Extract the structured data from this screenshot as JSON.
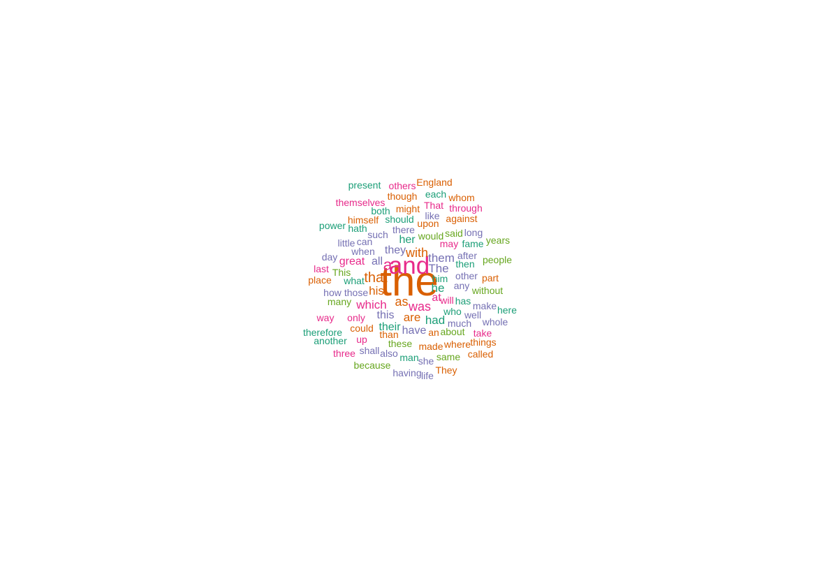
{
  "chart_data": {
    "type": "wordcloud",
    "palette": [
      "#1b9e77",
      "#d95f02",
      "#7570b3",
      "#e7298a",
      "#66a61e"
    ],
    "words": [
      {
        "text": "the",
        "weight": 100,
        "color": "#d95f02"
      },
      {
        "text": "and",
        "weight": 58,
        "color": "#e7298a"
      },
      {
        "text": "a",
        "weight": 38,
        "color": "#e7298a"
      },
      {
        "text": "that",
        "weight": 34,
        "color": "#d95f02"
      },
      {
        "text": "with",
        "weight": 30,
        "color": "#d95f02"
      },
      {
        "text": "was",
        "weight": 30,
        "color": "#e7298a"
      },
      {
        "text": "as",
        "weight": 30,
        "color": "#d95f02"
      },
      {
        "text": "The",
        "weight": 29,
        "color": "#7570b3"
      },
      {
        "text": "which",
        "weight": 29,
        "color": "#e7298a"
      },
      {
        "text": "his",
        "weight": 28,
        "color": "#d95f02"
      },
      {
        "text": "them",
        "weight": 28,
        "color": "#7570b3"
      },
      {
        "text": "he",
        "weight": 28,
        "color": "#1b9e77"
      },
      {
        "text": "are",
        "weight": 28,
        "color": "#d95f02"
      },
      {
        "text": "had",
        "weight": 28,
        "color": "#1b9e77"
      },
      {
        "text": "this",
        "weight": 27,
        "color": "#7570b3"
      },
      {
        "text": "their",
        "weight": 27,
        "color": "#1b9e77"
      },
      {
        "text": "have",
        "weight": 27,
        "color": "#7570b3"
      },
      {
        "text": "they",
        "weight": 27,
        "color": "#7570b3"
      },
      {
        "text": "all",
        "weight": 27,
        "color": "#7570b3"
      },
      {
        "text": "at",
        "weight": 27,
        "color": "#e7298a"
      },
      {
        "text": "great",
        "weight": 26,
        "color": "#e7298a"
      },
      {
        "text": "her",
        "weight": 26,
        "color": "#1b9e77"
      },
      {
        "text": "England",
        "weight": 24,
        "color": "#d95f02"
      },
      {
        "text": "present",
        "weight": 24,
        "color": "#1b9e77"
      },
      {
        "text": "others",
        "weight": 24,
        "color": "#e7298a"
      },
      {
        "text": "though",
        "weight": 24,
        "color": "#d95f02"
      },
      {
        "text": "each",
        "weight": 24,
        "color": "#1b9e77"
      },
      {
        "text": "whom",
        "weight": 24,
        "color": "#d95f02"
      },
      {
        "text": "themselves",
        "weight": 24,
        "color": "#e7298a"
      },
      {
        "text": "That",
        "weight": 24,
        "color": "#e7298a"
      },
      {
        "text": "through",
        "weight": 24,
        "color": "#e7298a"
      },
      {
        "text": "both",
        "weight": 24,
        "color": "#1b9e77"
      },
      {
        "text": "might",
        "weight": 24,
        "color": "#d95f02"
      },
      {
        "text": "like",
        "weight": 24,
        "color": "#7570b3"
      },
      {
        "text": "himself",
        "weight": 24,
        "color": "#d95f02"
      },
      {
        "text": "should",
        "weight": 24,
        "color": "#1b9e77"
      },
      {
        "text": "upon",
        "weight": 24,
        "color": "#d95f02"
      },
      {
        "text": "against",
        "weight": 24,
        "color": "#d95f02"
      },
      {
        "text": "power",
        "weight": 24,
        "color": "#1b9e77"
      },
      {
        "text": "hath",
        "weight": 24,
        "color": "#1b9e77"
      },
      {
        "text": "there",
        "weight": 24,
        "color": "#7570b3"
      },
      {
        "text": "said",
        "weight": 24,
        "color": "#66a61e"
      },
      {
        "text": "long",
        "weight": 24,
        "color": "#7570b3"
      },
      {
        "text": "such",
        "weight": 24,
        "color": "#7570b3"
      },
      {
        "text": "would",
        "weight": 24,
        "color": "#66a61e"
      },
      {
        "text": "little",
        "weight": 24,
        "color": "#7570b3"
      },
      {
        "text": "can",
        "weight": 24,
        "color": "#7570b3"
      },
      {
        "text": "may",
        "weight": 24,
        "color": "#e7298a"
      },
      {
        "text": "fame",
        "weight": 24,
        "color": "#1b9e77"
      },
      {
        "text": "years",
        "weight": 24,
        "color": "#66a61e"
      },
      {
        "text": "when",
        "weight": 24,
        "color": "#7570b3"
      },
      {
        "text": "day",
        "weight": 24,
        "color": "#7570b3"
      },
      {
        "text": "after",
        "weight": 24,
        "color": "#7570b3"
      },
      {
        "text": "people",
        "weight": 24,
        "color": "#66a61e"
      },
      {
        "text": "then",
        "weight": 24,
        "color": "#1b9e77"
      },
      {
        "text": "last",
        "weight": 24,
        "color": "#e7298a"
      },
      {
        "text": "This",
        "weight": 24,
        "color": "#66a61e"
      },
      {
        "text": "other",
        "weight": 24,
        "color": "#7570b3"
      },
      {
        "text": "part",
        "weight": 24,
        "color": "#d95f02"
      },
      {
        "text": "place",
        "weight": 24,
        "color": "#d95f02"
      },
      {
        "text": "what",
        "weight": 24,
        "color": "#1b9e77"
      },
      {
        "text": "him",
        "weight": 24,
        "color": "#1b9e77"
      },
      {
        "text": "any",
        "weight": 24,
        "color": "#7570b3"
      },
      {
        "text": "without",
        "weight": 24,
        "color": "#66a61e"
      },
      {
        "text": "how",
        "weight": 24,
        "color": "#7570b3"
      },
      {
        "text": "those",
        "weight": 24,
        "color": "#7570b3"
      },
      {
        "text": "many",
        "weight": 24,
        "color": "#66a61e"
      },
      {
        "text": "will",
        "weight": 24,
        "color": "#e7298a"
      },
      {
        "text": "has",
        "weight": 24,
        "color": "#1b9e77"
      },
      {
        "text": "make",
        "weight": 24,
        "color": "#7570b3"
      },
      {
        "text": "here",
        "weight": 24,
        "color": "#1b9e77"
      },
      {
        "text": "who",
        "weight": 24,
        "color": "#1b9e77"
      },
      {
        "text": "well",
        "weight": 24,
        "color": "#7570b3"
      },
      {
        "text": "way",
        "weight": 24,
        "color": "#e7298a"
      },
      {
        "text": "only",
        "weight": 24,
        "color": "#e7298a"
      },
      {
        "text": "much",
        "weight": 24,
        "color": "#7570b3"
      },
      {
        "text": "whole",
        "weight": 24,
        "color": "#7570b3"
      },
      {
        "text": "therefore",
        "weight": 24,
        "color": "#1b9e77"
      },
      {
        "text": "could",
        "weight": 24,
        "color": "#d95f02"
      },
      {
        "text": "an",
        "weight": 24,
        "color": "#d95f02"
      },
      {
        "text": "about",
        "weight": 24,
        "color": "#66a61e"
      },
      {
        "text": "take",
        "weight": 24,
        "color": "#e7298a"
      },
      {
        "text": "than",
        "weight": 24,
        "color": "#d95f02"
      },
      {
        "text": "another",
        "weight": 24,
        "color": "#1b9e77"
      },
      {
        "text": "up",
        "weight": 24,
        "color": "#e7298a"
      },
      {
        "text": "these",
        "weight": 24,
        "color": "#66a61e"
      },
      {
        "text": "where",
        "weight": 24,
        "color": "#d95f02"
      },
      {
        "text": "things",
        "weight": 24,
        "color": "#d95f02"
      },
      {
        "text": "made",
        "weight": 24,
        "color": "#d95f02"
      },
      {
        "text": "shall",
        "weight": 24,
        "color": "#7570b3"
      },
      {
        "text": "three",
        "weight": 24,
        "color": "#e7298a"
      },
      {
        "text": "also",
        "weight": 24,
        "color": "#7570b3"
      },
      {
        "text": "man",
        "weight": 24,
        "color": "#1b9e77"
      },
      {
        "text": "same",
        "weight": 24,
        "color": "#66a61e"
      },
      {
        "text": "called",
        "weight": 24,
        "color": "#d95f02"
      },
      {
        "text": "she",
        "weight": 24,
        "color": "#7570b3"
      },
      {
        "text": "because",
        "weight": 24,
        "color": "#66a61e"
      },
      {
        "text": "They",
        "weight": 24,
        "color": "#d95f02"
      },
      {
        "text": "having",
        "weight": 24,
        "color": "#7570b3"
      },
      {
        "text": "life",
        "weight": 24,
        "color": "#7570b3"
      }
    ]
  }
}
